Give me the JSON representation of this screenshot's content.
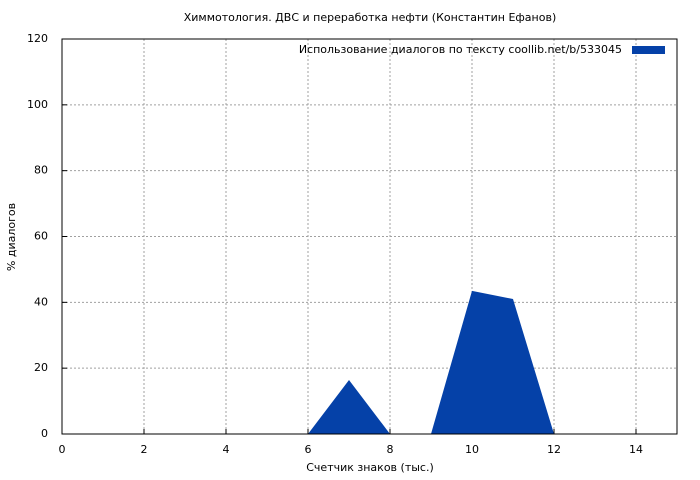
{
  "chart_data": {
    "type": "area",
    "title": "Химмотология. ДВС и переработка нефти (Константин Ефанов)",
    "x_label": "Счетчик знаков (тыс.)",
    "y_label": "% диалогов",
    "x": [
      0,
      1,
      2,
      3,
      4,
      5,
      6,
      7,
      8,
      9,
      10,
      11,
      12,
      13,
      14
    ],
    "series": [
      {
        "name": "Использование диалогов по тексту  coollib.net/b/533045",
        "color": "#0541a8",
        "values": [
          0,
          0,
          0,
          0,
          0,
          0,
          0,
          16.4,
          0,
          0,
          43.5,
          41,
          0,
          0,
          0
        ]
      }
    ],
    "xlim": [
      0,
      15
    ],
    "xticks": [
      0,
      2,
      4,
      6,
      8,
      10,
      12,
      14
    ],
    "ylim": [
      0,
      120
    ],
    "yticks": [
      0,
      20,
      40,
      60,
      80,
      100,
      120
    ],
    "grid": true,
    "legend_position": "top-right"
  }
}
